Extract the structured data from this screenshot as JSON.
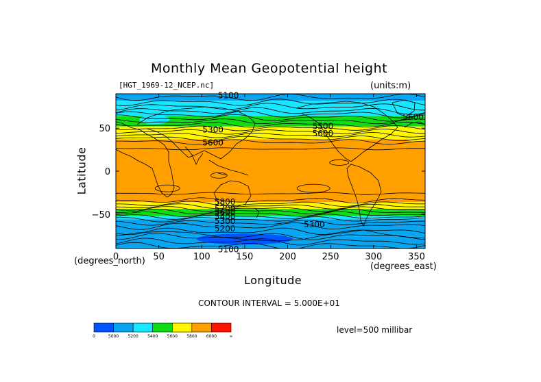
{
  "chart_data": {
    "type": "heatmap",
    "title": "Monthly Mean Geopotential height",
    "file_label": "[HGT_1969-12_NCEP.nc]",
    "units_label": "(units:m)",
    "xlabel": "Longitude",
    "ylabel": "Latitude",
    "x_units": "(degrees_east)",
    "y_units": "(degrees_north)",
    "xlim": [
      0,
      360
    ],
    "ylim": [
      -90,
      90
    ],
    "x_ticks": [
      "0",
      "50",
      "100",
      "150",
      "200",
      "250",
      "300",
      "350"
    ],
    "y_ticks": [
      "50",
      "0",
      "-50"
    ],
    "contour_interval_text": "CONTOUR INTERVAL = 5.000E+01",
    "level_text": "level=500 millibar",
    "colorbar": {
      "labels": [
        "0",
        "5000",
        "5200",
        "5400",
        "5600",
        "5800",
        "6000",
        "∞"
      ],
      "colors": [
        "#0055ff",
        "#0aa5f0",
        "#19e6ff",
        "#0fdc14",
        "#fff600",
        "#ff9f00",
        "#ff1400"
      ]
    },
    "bands": [
      {
        "lat_top": 90,
        "lat_bottom": 82,
        "color": "#0aa5f0"
      },
      {
        "lat_top": 82,
        "lat_bottom": 64,
        "color": "#19e6ff"
      },
      {
        "lat_top": 64,
        "lat_bottom": 52,
        "color": "#0fdc14"
      },
      {
        "lat_top": 52,
        "lat_bottom": 37,
        "color": "#fff600"
      },
      {
        "lat_top": 37,
        "lat_bottom": -36,
        "color": "#ff9f00"
      },
      {
        "lat_top": -36,
        "lat_bottom": -44,
        "color": "#fff600"
      },
      {
        "lat_top": -44,
        "lat_bottom": -52,
        "color": "#0fdc14"
      },
      {
        "lat_top": -52,
        "lat_bottom": -56,
        "color": "#19e6ff"
      },
      {
        "lat_top": -56,
        "lat_bottom": -76,
        "color": "#0aa5f0"
      },
      {
        "lat_top": -76,
        "lat_bottom": -90,
        "color": "#0aa5f0"
      }
    ],
    "contour_labels": [
      {
        "text": "5100",
        "lon": 130,
        "lat": 88
      },
      {
        "text": "5300",
        "lon": 112,
        "lat": 48
      },
      {
        "text": "5600",
        "lon": 112,
        "lat": 33
      },
      {
        "text": "5500",
        "lon": 240,
        "lat": 52
      },
      {
        "text": "5600",
        "lon": 240,
        "lat": 44
      },
      {
        "text": "5600",
        "lon": 345,
        "lat": 63
      },
      {
        "text": "5800",
        "lon": 126,
        "lat": -36
      },
      {
        "text": "5700",
        "lon": 126,
        "lat": -44
      },
      {
        "text": "5600",
        "lon": 126,
        "lat": -48
      },
      {
        "text": "5400",
        "lon": 126,
        "lat": -53
      },
      {
        "text": "5300",
        "lon": 126,
        "lat": -58
      },
      {
        "text": "5200",
        "lon": 126,
        "lat": -67
      },
      {
        "text": "5300",
        "lon": 230,
        "lat": -62
      },
      {
        "text": "5100",
        "lon": 130,
        "lat": -91
      }
    ]
  }
}
